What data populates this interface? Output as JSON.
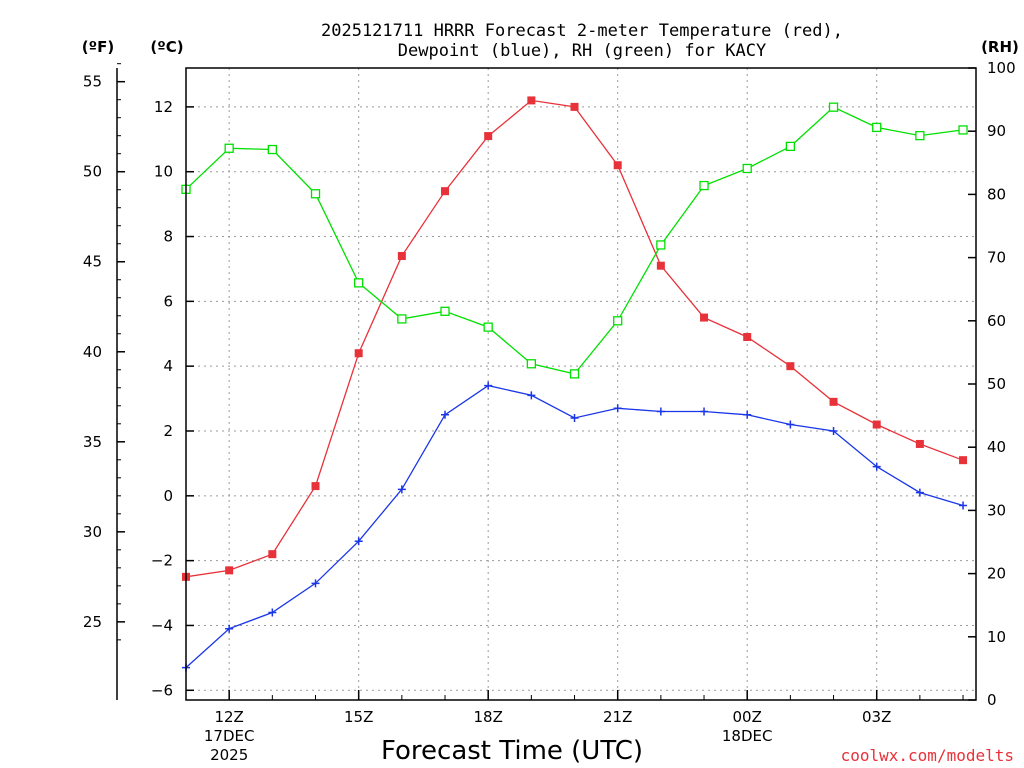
{
  "chart_data": {
    "type": "line",
    "title_line1": "2025121711 HRRR Forecast 2-meter Temperature (red),",
    "title_line2": "Dewpoint (blue), RH (green) for KACY",
    "xlabel": "Forecast Time (UTC)",
    "credit": "coolwx.com/modelts",
    "units": {
      "fahrenheit": "(ºF)",
      "celsius": "(ºC)",
      "rh": "(RH)"
    },
    "x_hours": [
      11,
      12,
      13,
      14,
      15,
      16,
      17,
      18,
      19,
      20,
      21,
      22,
      23,
      24,
      25,
      26,
      27,
      28,
      29
    ],
    "x_range": [
      11,
      29.3
    ],
    "x_ticks": [
      {
        "hour": 12,
        "label": "12Z",
        "sub1": "17DEC",
        "sub2": "2025"
      },
      {
        "hour": 15,
        "label": "15Z"
      },
      {
        "hour": 18,
        "label": "18Z"
      },
      {
        "hour": 21,
        "label": "21Z"
      },
      {
        "hour": 24,
        "label": "00Z",
        "sub1": "18DEC"
      },
      {
        "hour": 27,
        "label": "03Z"
      }
    ],
    "c_range": [
      -6.3,
      13.2
    ],
    "c_ticks": [
      -6,
      -4,
      -2,
      0,
      2,
      4,
      6,
      8,
      10,
      12
    ],
    "c_tick_labels": [
      "−6",
      "−4",
      "−2",
      "0",
      "2",
      "4",
      "6",
      "8",
      "10",
      "12"
    ],
    "f_ticks": [
      25,
      30,
      35,
      40,
      45,
      50,
      55
    ],
    "rh_range": [
      0,
      100
    ],
    "rh_ticks": [
      0,
      10,
      20,
      30,
      40,
      50,
      60,
      70,
      80,
      90,
      100
    ],
    "series": [
      {
        "name": "Temperature",
        "axis": "celsius",
        "color": "#e8323a",
        "marker": "filled-square",
        "values": [
          -2.5,
          -2.3,
          -1.8,
          0.3,
          4.4,
          7.4,
          9.4,
          11.1,
          12.2,
          12.0,
          10.2,
          7.1,
          5.5,
          4.9,
          4.0,
          2.9,
          2.2,
          1.6,
          1.1
        ]
      },
      {
        "name": "Dewpoint",
        "axis": "celsius",
        "color": "#1a36e8",
        "marker": "plus",
        "values": [
          -5.3,
          -4.1,
          -3.6,
          -2.7,
          -1.4,
          0.2,
          2.5,
          3.4,
          3.1,
          2.4,
          2.7,
          2.6,
          2.6,
          2.5,
          2.2,
          2.0,
          0.9,
          0.1,
          -0.3
        ]
      },
      {
        "name": "RH",
        "axis": "rh",
        "color": "#00e000",
        "marker": "open-square",
        "values": [
          80.8,
          87.3,
          87.1,
          80.1,
          66.0,
          60.3,
          61.5,
          59.0,
          53.2,
          51.6,
          60.0,
          72.0,
          81.4,
          84.1,
          87.6,
          93.8,
          90.6,
          89.3,
          90.2
        ]
      }
    ]
  }
}
